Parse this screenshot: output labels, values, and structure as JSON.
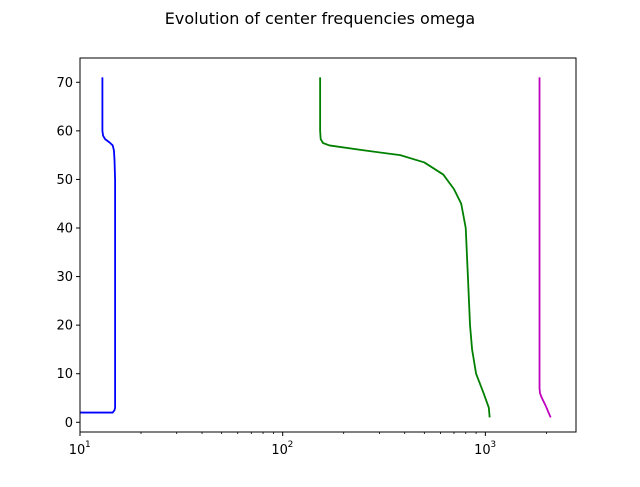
{
  "chart_data": {
    "type": "line",
    "title": "Evolution of center frequencies omega",
    "xlabel": "",
    "ylabel": "",
    "xscale": "log",
    "xlim": [
      10,
      2800
    ],
    "ylim": [
      -2,
      75
    ],
    "grid": false,
    "legend": "none",
    "x_ticks": [
      {
        "base": "10",
        "exp": "1",
        "value": 10
      },
      {
        "base": "10",
        "exp": "2",
        "value": 100
      },
      {
        "base": "10",
        "exp": "3",
        "value": 1000
      }
    ],
    "y_ticks": [
      0,
      10,
      20,
      30,
      40,
      50,
      60,
      70
    ],
    "series": [
      {
        "color": "#0000ff",
        "points": [
          [
            10,
            2
          ],
          [
            14.5,
            2
          ],
          [
            14.8,
            2.5
          ],
          [
            14.9,
            3
          ],
          [
            14.9,
            10
          ],
          [
            14.9,
            20
          ],
          [
            14.9,
            30
          ],
          [
            14.9,
            40
          ],
          [
            14.9,
            50
          ],
          [
            14.8,
            54
          ],
          [
            14.7,
            56
          ],
          [
            14.5,
            57
          ],
          [
            14.0,
            57.6
          ],
          [
            13.3,
            58.3
          ],
          [
            13.0,
            59
          ],
          [
            12.9,
            60
          ],
          [
            12.9,
            63
          ],
          [
            12.9,
            71
          ]
        ]
      },
      {
        "color": "#008000",
        "points": [
          [
            1050,
            1
          ],
          [
            1040,
            3
          ],
          [
            980,
            6
          ],
          [
            900,
            10
          ],
          [
            860,
            15
          ],
          [
            840,
            20
          ],
          [
            820,
            30
          ],
          [
            800,
            40
          ],
          [
            760,
            45
          ],
          [
            700,
            48
          ],
          [
            620,
            51
          ],
          [
            500,
            53.5
          ],
          [
            380,
            55
          ],
          [
            250,
            56
          ],
          [
            170,
            57
          ],
          [
            158,
            57.5
          ],
          [
            154,
            58.3
          ],
          [
            153,
            60
          ],
          [
            153,
            65
          ],
          [
            153,
            71
          ]
        ]
      },
      {
        "color": "#bf00bf",
        "points": [
          [
            2100,
            1
          ],
          [
            2050,
            2
          ],
          [
            1980,
            3.5
          ],
          [
            1900,
            5
          ],
          [
            1860,
            6
          ],
          [
            1850,
            7
          ],
          [
            1850,
            10
          ],
          [
            1850,
            30
          ],
          [
            1850,
            50
          ],
          [
            1850,
            71
          ]
        ]
      }
    ]
  }
}
